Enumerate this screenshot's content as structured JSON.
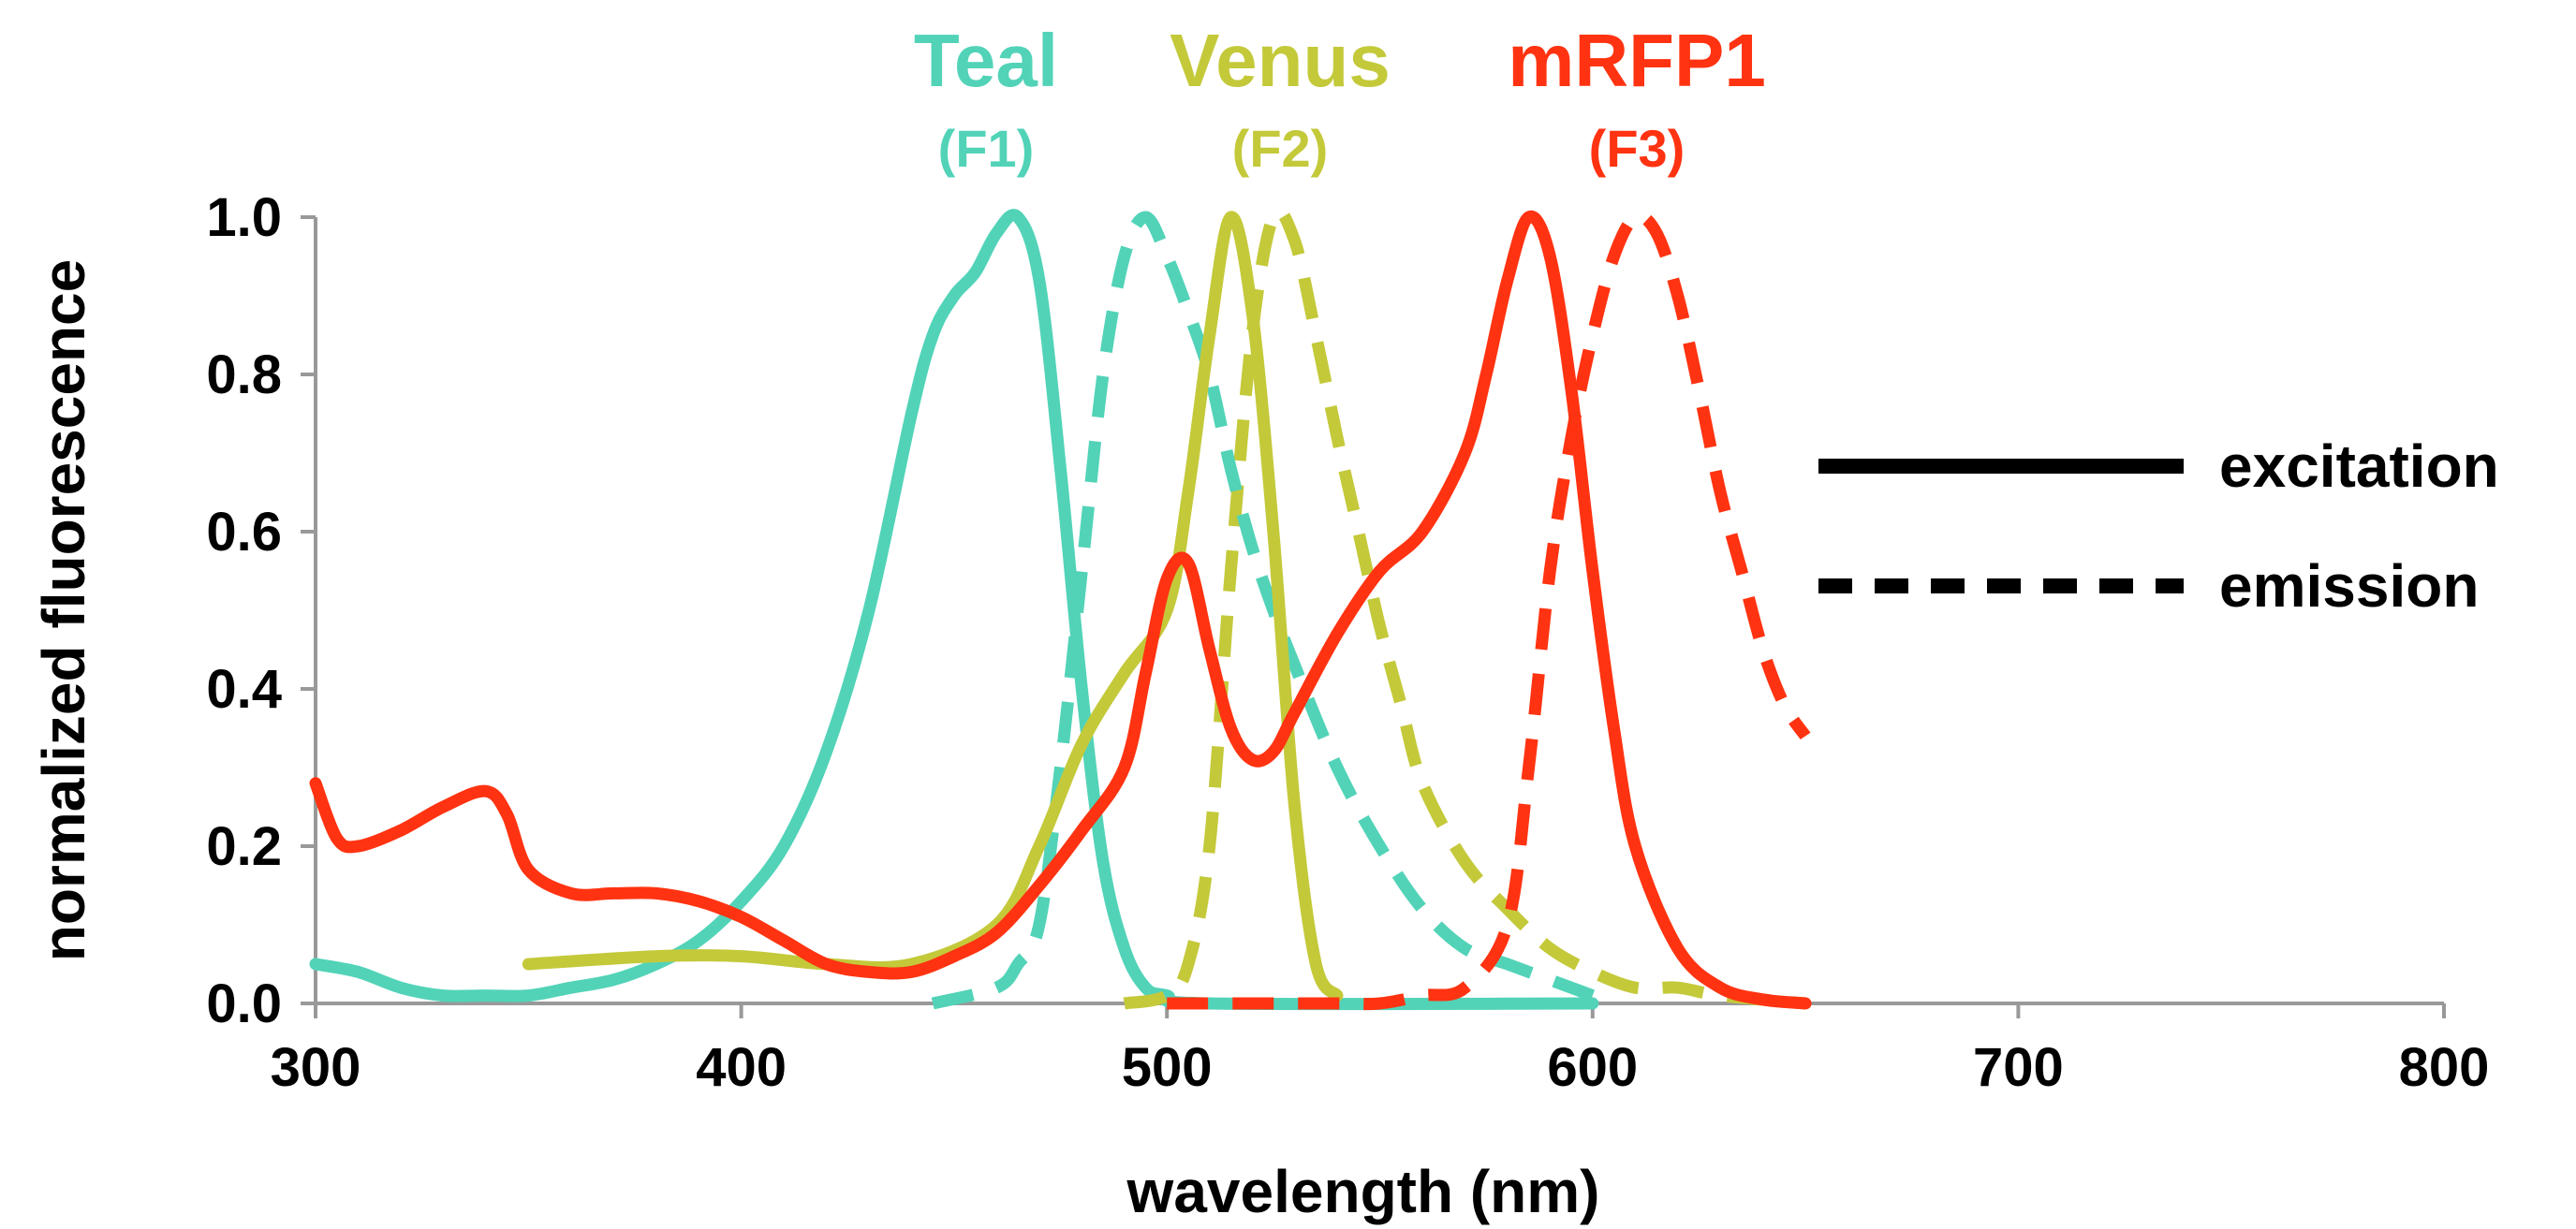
{
  "chart_data": {
    "type": "line",
    "title": "",
    "xlabel": "wavelength (nm)",
    "ylabel": "normalized fluorescence",
    "xlim": [
      300,
      800
    ],
    "ylim": [
      0,
      1.0
    ],
    "x_ticks": [
      "300",
      "400",
      "500",
      "600",
      "700",
      "800"
    ],
    "y_ticks": [
      "0.0",
      "0.2",
      "0.4",
      "0.6",
      "0.8",
      "1.0"
    ],
    "grid": false,
    "legend": {
      "placement": "right",
      "entries": [
        {
          "label": "excitation",
          "style": "solid"
        },
        {
          "label": "emission",
          "style": "dashed"
        }
      ]
    },
    "fluorophores": [
      {
        "name": "Teal",
        "code": "(F1)",
        "color": "#52d3b8"
      },
      {
        "name": "Venus",
        "code": "(F2)",
        "color": "#c4c93a"
      },
      {
        "name": "mRFP1",
        "code": "(F3)",
        "color": "#ff3311"
      }
    ],
    "series": [
      {
        "fluorophore": 0,
        "kind": "excitation",
        "color": "#52d3b8",
        "points": [
          [
            300,
            0.05
          ],
          [
            310,
            0.04
          ],
          [
            320,
            0.02
          ],
          [
            330,
            0.01
          ],
          [
            340,
            0.01
          ],
          [
            350,
            0.01
          ],
          [
            360,
            0.02
          ],
          [
            370,
            0.03
          ],
          [
            380,
            0.05
          ],
          [
            390,
            0.08
          ],
          [
            400,
            0.13
          ],
          [
            410,
            0.2
          ],
          [
            420,
            0.32
          ],
          [
            430,
            0.5
          ],
          [
            440,
            0.75
          ],
          [
            445,
            0.85
          ],
          [
            450,
            0.9
          ],
          [
            455,
            0.93
          ],
          [
            460,
            0.98
          ],
          [
            465,
            1.0
          ],
          [
            470,
            0.92
          ],
          [
            475,
            0.68
          ],
          [
            480,
            0.4
          ],
          [
            485,
            0.18
          ],
          [
            490,
            0.07
          ],
          [
            495,
            0.02
          ],
          [
            500,
            0.01
          ],
          [
            510,
            0.0
          ],
          [
            600,
            0.0
          ]
        ]
      },
      {
        "fluorophore": 0,
        "kind": "emission",
        "color": "#52d3b8",
        "points": [
          [
            445,
            0.0
          ],
          [
            460,
            0.02
          ],
          [
            465,
            0.05
          ],
          [
            470,
            0.1
          ],
          [
            475,
            0.3
          ],
          [
            480,
            0.55
          ],
          [
            485,
            0.8
          ],
          [
            490,
            0.95
          ],
          [
            495,
            1.0
          ],
          [
            500,
            0.95
          ],
          [
            505,
            0.88
          ],
          [
            510,
            0.8
          ],
          [
            515,
            0.68
          ],
          [
            520,
            0.58
          ],
          [
            525,
            0.5
          ],
          [
            530,
            0.43
          ],
          [
            540,
            0.3
          ],
          [
            550,
            0.2
          ],
          [
            560,
            0.12
          ],
          [
            570,
            0.07
          ],
          [
            580,
            0.05
          ],
          [
            590,
            0.03
          ],
          [
            600,
            0.01
          ]
        ]
      },
      {
        "fluorophore": 1,
        "kind": "excitation",
        "color": "#c4c93a",
        "points": [
          [
            350,
            0.05
          ],
          [
            380,
            0.06
          ],
          [
            400,
            0.06
          ],
          [
            420,
            0.05
          ],
          [
            440,
            0.05
          ],
          [
            460,
            0.1
          ],
          [
            470,
            0.2
          ],
          [
            480,
            0.33
          ],
          [
            490,
            0.42
          ],
          [
            500,
            0.5
          ],
          [
            505,
            0.65
          ],
          [
            510,
            0.85
          ],
          [
            515,
            1.0
          ],
          [
            520,
            0.88
          ],
          [
            525,
            0.6
          ],
          [
            530,
            0.25
          ],
          [
            535,
            0.05
          ],
          [
            540,
            0.01
          ]
        ]
      },
      {
        "fluorophore": 1,
        "kind": "emission",
        "color": "#c4c93a",
        "points": [
          [
            490,
            0.0
          ],
          [
            500,
            0.01
          ],
          [
            505,
            0.05
          ],
          [
            510,
            0.2
          ],
          [
            515,
            0.55
          ],
          [
            520,
            0.85
          ],
          [
            525,
            1.0
          ],
          [
            530,
            0.97
          ],
          [
            535,
            0.85
          ],
          [
            540,
            0.72
          ],
          [
            545,
            0.6
          ],
          [
            550,
            0.48
          ],
          [
            555,
            0.38
          ],
          [
            560,
            0.28
          ],
          [
            570,
            0.18
          ],
          [
            580,
            0.12
          ],
          [
            590,
            0.07
          ],
          [
            600,
            0.04
          ],
          [
            610,
            0.02
          ],
          [
            620,
            0.02
          ],
          [
            630,
            0.01
          ],
          [
            650,
            0.0
          ]
        ]
      },
      {
        "fluorophore": 2,
        "kind": "excitation",
        "color": "#ff3311",
        "points": [
          [
            300,
            0.28
          ],
          [
            305,
            0.21
          ],
          [
            310,
            0.2
          ],
          [
            320,
            0.22
          ],
          [
            330,
            0.25
          ],
          [
            340,
            0.27
          ],
          [
            345,
            0.24
          ],
          [
            350,
            0.17
          ],
          [
            360,
            0.14
          ],
          [
            370,
            0.14
          ],
          [
            380,
            0.14
          ],
          [
            390,
            0.13
          ],
          [
            400,
            0.11
          ],
          [
            410,
            0.08
          ],
          [
            420,
            0.05
          ],
          [
            430,
            0.04
          ],
          [
            440,
            0.04
          ],
          [
            450,
            0.06
          ],
          [
            460,
            0.09
          ],
          [
            470,
            0.15
          ],
          [
            480,
            0.22
          ],
          [
            490,
            0.3
          ],
          [
            495,
            0.42
          ],
          [
            500,
            0.54
          ],
          [
            505,
            0.56
          ],
          [
            510,
            0.45
          ],
          [
            515,
            0.35
          ],
          [
            520,
            0.31
          ],
          [
            525,
            0.32
          ],
          [
            530,
            0.37
          ],
          [
            540,
            0.47
          ],
          [
            550,
            0.55
          ],
          [
            560,
            0.6
          ],
          [
            570,
            0.7
          ],
          [
            575,
            0.8
          ],
          [
            580,
            0.92
          ],
          [
            585,
            1.0
          ],
          [
            590,
            0.95
          ],
          [
            595,
            0.78
          ],
          [
            600,
            0.55
          ],
          [
            605,
            0.35
          ],
          [
            610,
            0.2
          ],
          [
            620,
            0.07
          ],
          [
            630,
            0.02
          ],
          [
            640,
            0.005
          ],
          [
            650,
            0.0
          ]
        ]
      },
      {
        "fluorophore": 2,
        "kind": "emission",
        "color": "#ff3311",
        "points": [
          [
            500,
            0.0
          ],
          [
            520,
            0.0
          ],
          [
            540,
            0.0
          ],
          [
            550,
            0.0
          ],
          [
            560,
            0.01
          ],
          [
            570,
            0.02
          ],
          [
            580,
            0.1
          ],
          [
            585,
            0.3
          ],
          [
            590,
            0.55
          ],
          [
            595,
            0.72
          ],
          [
            600,
            0.85
          ],
          [
            605,
            0.95
          ],
          [
            610,
            1.0
          ],
          [
            615,
            0.98
          ],
          [
            620,
            0.9
          ],
          [
            625,
            0.78
          ],
          [
            630,
            0.65
          ],
          [
            635,
            0.55
          ],
          [
            640,
            0.45
          ],
          [
            645,
            0.38
          ],
          [
            650,
            0.34
          ]
        ]
      }
    ]
  }
}
